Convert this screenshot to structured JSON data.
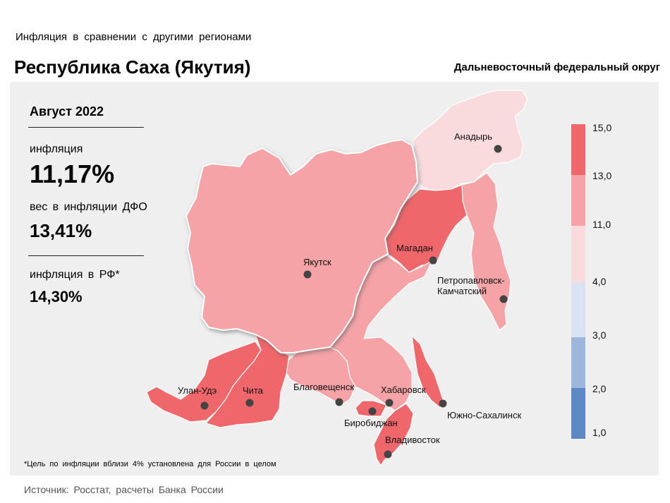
{
  "header": {
    "supertitle": "Инфляция в сравнении с другими регионами",
    "title": "Республика Саха (Якутия)",
    "district": "Дальневосточный федеральный округ"
  },
  "stats": {
    "period": "Август 2022",
    "inflation_label": "инфляция",
    "inflation_value": "11,17%",
    "weight_label": "вес в инфляции ДФО",
    "weight_value": "13,41%",
    "rf_label": "инфляция в РФ*",
    "rf_value": "14,30%"
  },
  "footnote": "*Цель по инфляции вблизи 4% установлена для России в целом",
  "source": "Источник: Росстат, расчеты Банка России",
  "legend": {
    "ticks": [
      "15,0",
      "13,0",
      "11,0",
      "4,0",
      "3,0",
      "2,0",
      "1,0"
    ],
    "colors": [
      "#f0676b",
      "#f5a3a6",
      "#f9dadd",
      "#dae3f2",
      "#9cb6dc",
      "#5c88c6"
    ]
  },
  "cities": {
    "anadyr": "Анадырь",
    "magadan": "Магадан",
    "yakutsk": "Якутск",
    "petropavlovsk_1": "Петропавловск-",
    "petropavlovsk_2": "Камчатский",
    "ulan_ude": "Улан-Удэ",
    "chita": "Чита",
    "blagoveshchensk": "Благовещенск",
    "khabarovsk": "Хабаровск",
    "birobidzhan": "Биробиджан",
    "yuzhno_sakhalinsk": "Южно-Сахалинск",
    "vladivostok": "Владивосток"
  }
}
